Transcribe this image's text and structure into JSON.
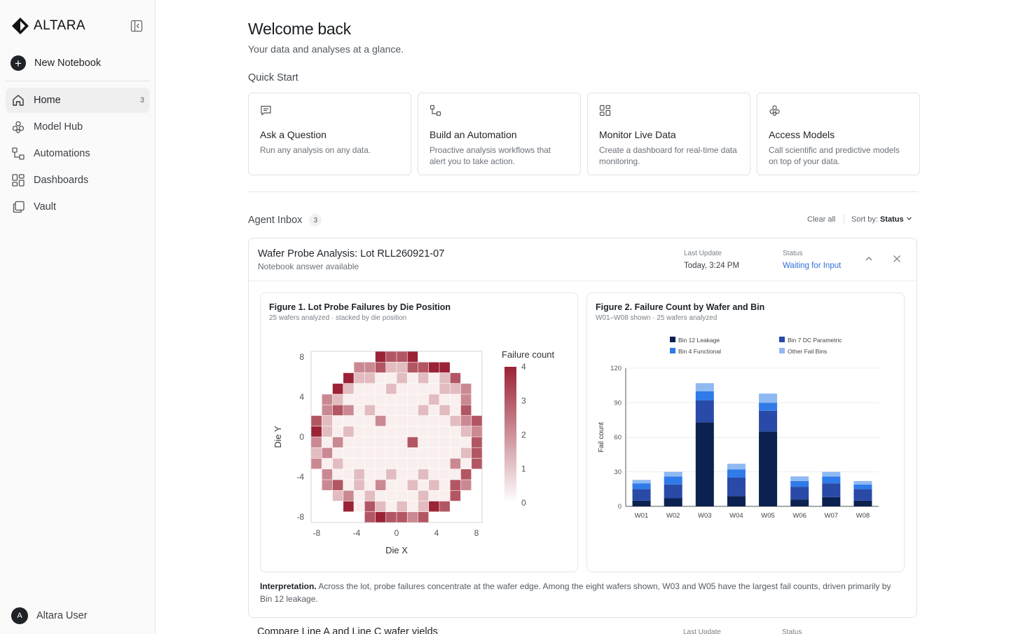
{
  "brand": {
    "name": "ALTARA"
  },
  "sidebar": {
    "new_notebook": "New Notebook",
    "items": [
      {
        "label": "Home",
        "count": "3",
        "icon": "home-icon"
      },
      {
        "label": "Model Hub",
        "icon": "models-icon"
      },
      {
        "label": "Automations",
        "icon": "automation-icon"
      },
      {
        "label": "Dashboards",
        "icon": "dashboard-icon"
      },
      {
        "label": "Vault",
        "icon": "vault-icon"
      }
    ],
    "user": {
      "initial": "A",
      "name": "Altara User"
    }
  },
  "header": {
    "title": "Welcome back",
    "subtitle": "Your data and analyses at a glance."
  },
  "quick_start": {
    "title": "Quick Start",
    "cards": [
      {
        "title": "Ask a Question",
        "desc": "Run any analysis on any data.",
        "icon": "chat-icon"
      },
      {
        "title": "Build an Automation",
        "desc": "Proactive analysis workflows that alert you to take action.",
        "icon": "automation-icon"
      },
      {
        "title": "Monitor Live Data",
        "desc": "Create a dashboard for real-time data monitoring.",
        "icon": "dashboard-icon"
      },
      {
        "title": "Access Models",
        "desc": "Call scientific and predictive models on top of your data.",
        "icon": "models-icon"
      }
    ]
  },
  "inbox": {
    "title": "Agent Inbox",
    "count": "3",
    "clear_all": "Clear all",
    "sort_label": "Sort by:",
    "sort_value": "Status",
    "items": [
      {
        "title": "Wafer Probe Analysis: Lot RLL260921-07",
        "subtitle": "Notebook answer available",
        "last_update_label": "Last Update",
        "last_update": "Today, 3:24 PM",
        "status_label": "Status",
        "status": "Waiting for Input",
        "interpretation_label": "Interpretation.",
        "interpretation": "Across the lot, probe failures concentrate at the wafer edge. Among the eight wafers shown, W03 and W05 have the largest fail counts, driven primarily by Bin 12 leakage."
      },
      {
        "title": "Compare Line A and Line C wafer yields",
        "last_update_label": "Last Update",
        "status_label": "Status"
      }
    ]
  },
  "colors": {
    "accent": "#2f6fd6",
    "bin12": "#0b2150",
    "bin7": "#2a4aa8",
    "bin4": "#2f7be8",
    "other": "#8fb9f2",
    "heat_high": "#9b2335",
    "heat_low": "#f9efee"
  },
  "chart_data": [
    {
      "type": "heatmap",
      "title": "Figure 1. Lot Probe Failures by Die Position",
      "subtitle": "25 wafers analyzed · stacked by die position",
      "xlabel": "Die X",
      "ylabel": "Die Y",
      "xticks": [
        "-8",
        "-4",
        "0",
        "4",
        "8"
      ],
      "yticks": [
        "8",
        "4",
        "0",
        "-4",
        "-8"
      ],
      "x_range": [
        -8,
        8
      ],
      "y_range": [
        -8,
        8
      ],
      "colorbar_title": "Failure count",
      "colorbar_ticks": [
        "4",
        "3",
        "2",
        "1",
        "0"
      ],
      "value_range": [
        0,
        4
      ],
      "grid": [
        [
          -1,
          -1,
          -1,
          -1,
          -1,
          -1,
          4,
          3,
          3,
          4,
          -1,
          -1,
          -1,
          -1,
          -1,
          -1
        ],
        [
          -1,
          -1,
          -1,
          -1,
          2,
          2,
          3,
          1,
          1,
          3,
          3,
          4,
          4,
          -1,
          -1,
          -1
        ],
        [
          -1,
          -1,
          -1,
          4,
          1,
          1,
          0,
          0,
          1,
          0,
          1,
          0,
          1,
          3,
          -1,
          -1
        ],
        [
          -1,
          -1,
          4,
          1,
          0,
          0,
          0,
          1,
          0,
          0,
          0,
          0,
          1,
          1,
          2,
          -1
        ],
        [
          -1,
          2,
          1,
          0,
          0,
          0,
          0,
          0,
          0,
          0,
          0,
          1,
          0,
          0,
          2,
          -1
        ],
        [
          -1,
          2,
          3,
          2,
          0,
          1,
          0,
          0,
          0,
          0,
          1,
          0,
          1,
          0,
          3,
          -1
        ],
        [
          3,
          1,
          0,
          0,
          0,
          0,
          2,
          0,
          0,
          0,
          0,
          0,
          0,
          1,
          2,
          3
        ],
        [
          4,
          1,
          0,
          1,
          0,
          0,
          0,
          0,
          0,
          0,
          0,
          0,
          0,
          0,
          1,
          2
        ],
        [
          2,
          0,
          2,
          0,
          0,
          0,
          0,
          0,
          0,
          3,
          0,
          0,
          0,
          0,
          0,
          3
        ],
        [
          1,
          2,
          0,
          0,
          0,
          0,
          0,
          0,
          0,
          0,
          0,
          0,
          0,
          0,
          1,
          3
        ],
        [
          2,
          0,
          1,
          0,
          0,
          0,
          0,
          0,
          0,
          0,
          0,
          0,
          0,
          2,
          0,
          3
        ],
        [
          -1,
          2,
          0,
          0,
          1,
          0,
          0,
          1,
          0,
          0,
          1,
          0,
          0,
          0,
          3,
          -1
        ],
        [
          -1,
          2,
          3,
          0,
          1,
          0,
          2,
          0,
          0,
          1,
          0,
          1,
          0,
          3,
          2,
          -1
        ],
        [
          -1,
          -1,
          1,
          2,
          0,
          1,
          0,
          0,
          0,
          0,
          1,
          0,
          0,
          3,
          -1,
          -1
        ],
        [
          -1,
          -1,
          -1,
          4,
          0,
          3,
          1,
          0,
          1,
          0,
          1,
          4,
          3,
          -1,
          -1,
          -1
        ],
        [
          -1,
          -1,
          -1,
          -1,
          -1,
          3,
          4,
          3,
          3,
          2,
          3,
          -1,
          -1,
          -1,
          -1,
          -1
        ]
      ]
    },
    {
      "type": "bar",
      "stacked": true,
      "title": "Figure 2. Failure Count by Wafer and Bin",
      "subtitle": "W01–W08 shown · 25 wafers analyzed",
      "ylabel": "Fail count",
      "ylim": [
        0,
        120
      ],
      "yticks": [
        0,
        30,
        60,
        90,
        120
      ],
      "legend": "top",
      "categories": [
        "W01",
        "W02",
        "W03",
        "W04",
        "W05",
        "W06",
        "W07",
        "W08"
      ],
      "series": [
        {
          "name": "Bin 12 Leakage",
          "color": "#0b2150",
          "values": [
            5,
            7,
            73,
            9,
            65,
            6,
            8,
            5
          ]
        },
        {
          "name": "Bin 7 DC Parametric",
          "color": "#2a4aa8",
          "values": [
            10,
            12,
            19,
            16,
            18,
            11,
            12,
            10
          ]
        },
        {
          "name": "Bin 4 Functional",
          "color": "#2f7be8",
          "values": [
            5,
            7,
            8,
            7,
            7,
            5,
            6,
            4
          ]
        },
        {
          "name": "Other Fail Bins",
          "color": "#8fb9f2",
          "values": [
            3,
            4,
            7,
            5,
            8,
            4,
            4,
            3
          ]
        }
      ]
    }
  ]
}
